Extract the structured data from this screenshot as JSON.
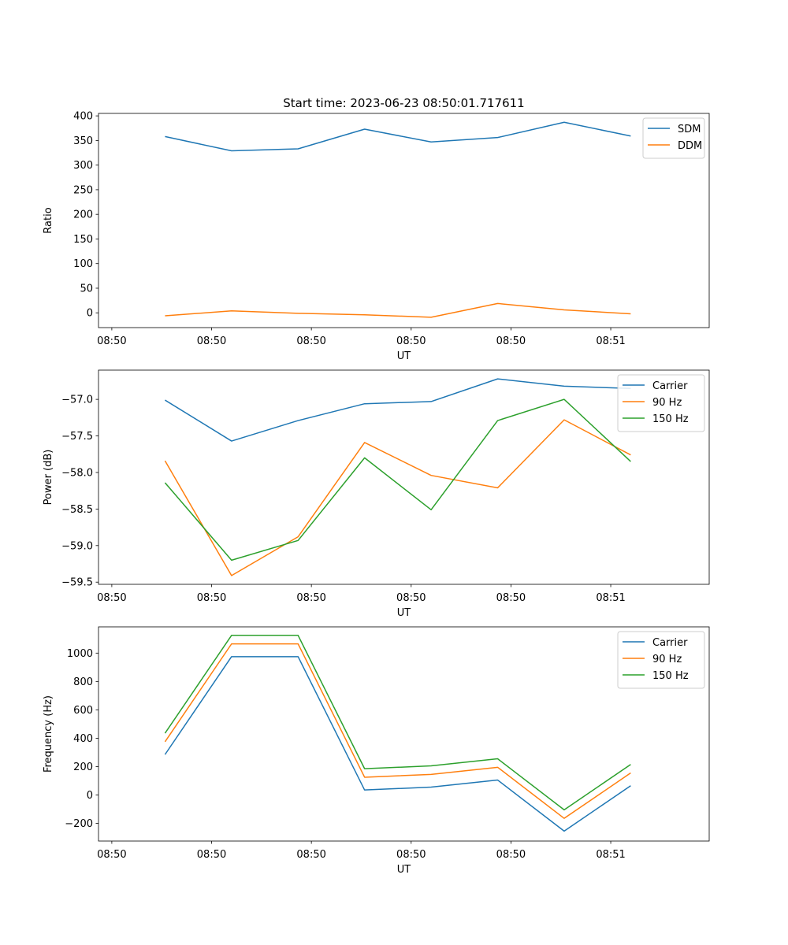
{
  "figure_title": "Start time: 2023-06-23 08:50:01.717611",
  "chart_data": [
    {
      "type": "line",
      "xlabel": "UT",
      "ylabel": "Ratio",
      "x": [
        1,
        2,
        3,
        4,
        5,
        6,
        7,
        8
      ],
      "xticks": [
        {
          "v": 0.2,
          "label": "08:50"
        },
        {
          "v": 1.7,
          "label": "08:50"
        },
        {
          "v": 3.2,
          "label": "08:50"
        },
        {
          "v": 4.7,
          "label": "08:50"
        },
        {
          "v": 6.2,
          "label": "08:50"
        },
        {
          "v": 7.7,
          "label": "08:51"
        }
      ],
      "xlim": [
        0,
        9.18
      ],
      "ylim": [
        -30,
        405
      ],
      "yticks": [
        0,
        50,
        100,
        150,
        200,
        250,
        300,
        350,
        400
      ],
      "ytick_labels": [
        "0",
        "50",
        "100",
        "150",
        "200",
        "250",
        "300",
        "350",
        "400"
      ],
      "legend_position": "top-right",
      "series": [
        {
          "name": "SDM",
          "color": "#1f77b4",
          "values": [
            358,
            329,
            333,
            373,
            347,
            356,
            387,
            359
          ]
        },
        {
          "name": "DDM",
          "color": "#ff7f0e",
          "values": [
            -6,
            4,
            -1,
            -4,
            -9,
            19,
            6,
            -2
          ]
        }
      ]
    },
    {
      "type": "line",
      "xlabel": "UT",
      "ylabel": "Power (dB)",
      "x": [
        1,
        2,
        3,
        4,
        5,
        6,
        7,
        8
      ],
      "xticks": [
        {
          "v": 0.2,
          "label": "08:50"
        },
        {
          "v": 1.7,
          "label": "08:50"
        },
        {
          "v": 3.2,
          "label": "08:50"
        },
        {
          "v": 4.7,
          "label": "08:50"
        },
        {
          "v": 6.2,
          "label": "08:50"
        },
        {
          "v": 7.7,
          "label": "08:51"
        }
      ],
      "xlim": [
        0,
        9.18
      ],
      "ylim": [
        -59.53,
        -56.6
      ],
      "yticks": [
        -59.5,
        -59.0,
        -58.5,
        -58.0,
        -57.5,
        -57.0
      ],
      "ytick_labels": [
        "−59.5",
        "−59.0",
        "−58.5",
        "−58.0",
        "−57.5",
        "−57.0"
      ],
      "legend_position": "top-right",
      "series": [
        {
          "name": "Carrier",
          "color": "#1f77b4",
          "values": [
            -57.01,
            -57.57,
            -57.29,
            -57.06,
            -57.03,
            -56.72,
            -56.82,
            -56.85
          ]
        },
        {
          "name": "90 Hz",
          "color": "#ff7f0e",
          "values": [
            -57.84,
            -59.41,
            -58.88,
            -57.59,
            -58.04,
            -58.21,
            -57.28,
            -57.76
          ]
        },
        {
          "name": "150 Hz",
          "color": "#2ca02c",
          "values": [
            -58.14,
            -59.2,
            -58.93,
            -57.8,
            -58.51,
            -57.29,
            -57.0,
            -57.85
          ]
        }
      ]
    },
    {
      "type": "line",
      "xlabel": "UT",
      "ylabel": "Frequency (Hz)",
      "x": [
        1,
        2,
        3,
        4,
        5,
        6,
        7,
        8
      ],
      "xticks": [
        {
          "v": 0.2,
          "label": "08:50"
        },
        {
          "v": 1.7,
          "label": "08:50"
        },
        {
          "v": 3.2,
          "label": "08:50"
        },
        {
          "v": 4.7,
          "label": "08:50"
        },
        {
          "v": 6.2,
          "label": "08:50"
        },
        {
          "v": 7.7,
          "label": "08:51"
        }
      ],
      "xlim": [
        0,
        9.18
      ],
      "ylim": [
        -325,
        1185
      ],
      "yticks": [
        -200,
        0,
        200,
        400,
        600,
        800,
        1000
      ],
      "ytick_labels": [
        "−200",
        "0",
        "200",
        "400",
        "600",
        "800",
        "1000"
      ],
      "legend_position": "top-right",
      "series": [
        {
          "name": "Carrier",
          "color": "#1f77b4",
          "values": [
            285,
            975,
            975,
            35,
            55,
            105,
            -255,
            65
          ]
        },
        {
          "name": "90 Hz",
          "color": "#ff7f0e",
          "values": [
            375,
            1065,
            1065,
            125,
            145,
            195,
            -165,
            155
          ]
        },
        {
          "name": "150 Hz",
          "color": "#2ca02c",
          "values": [
            435,
            1125,
            1125,
            185,
            205,
            255,
            -105,
            215
          ]
        }
      ]
    }
  ]
}
